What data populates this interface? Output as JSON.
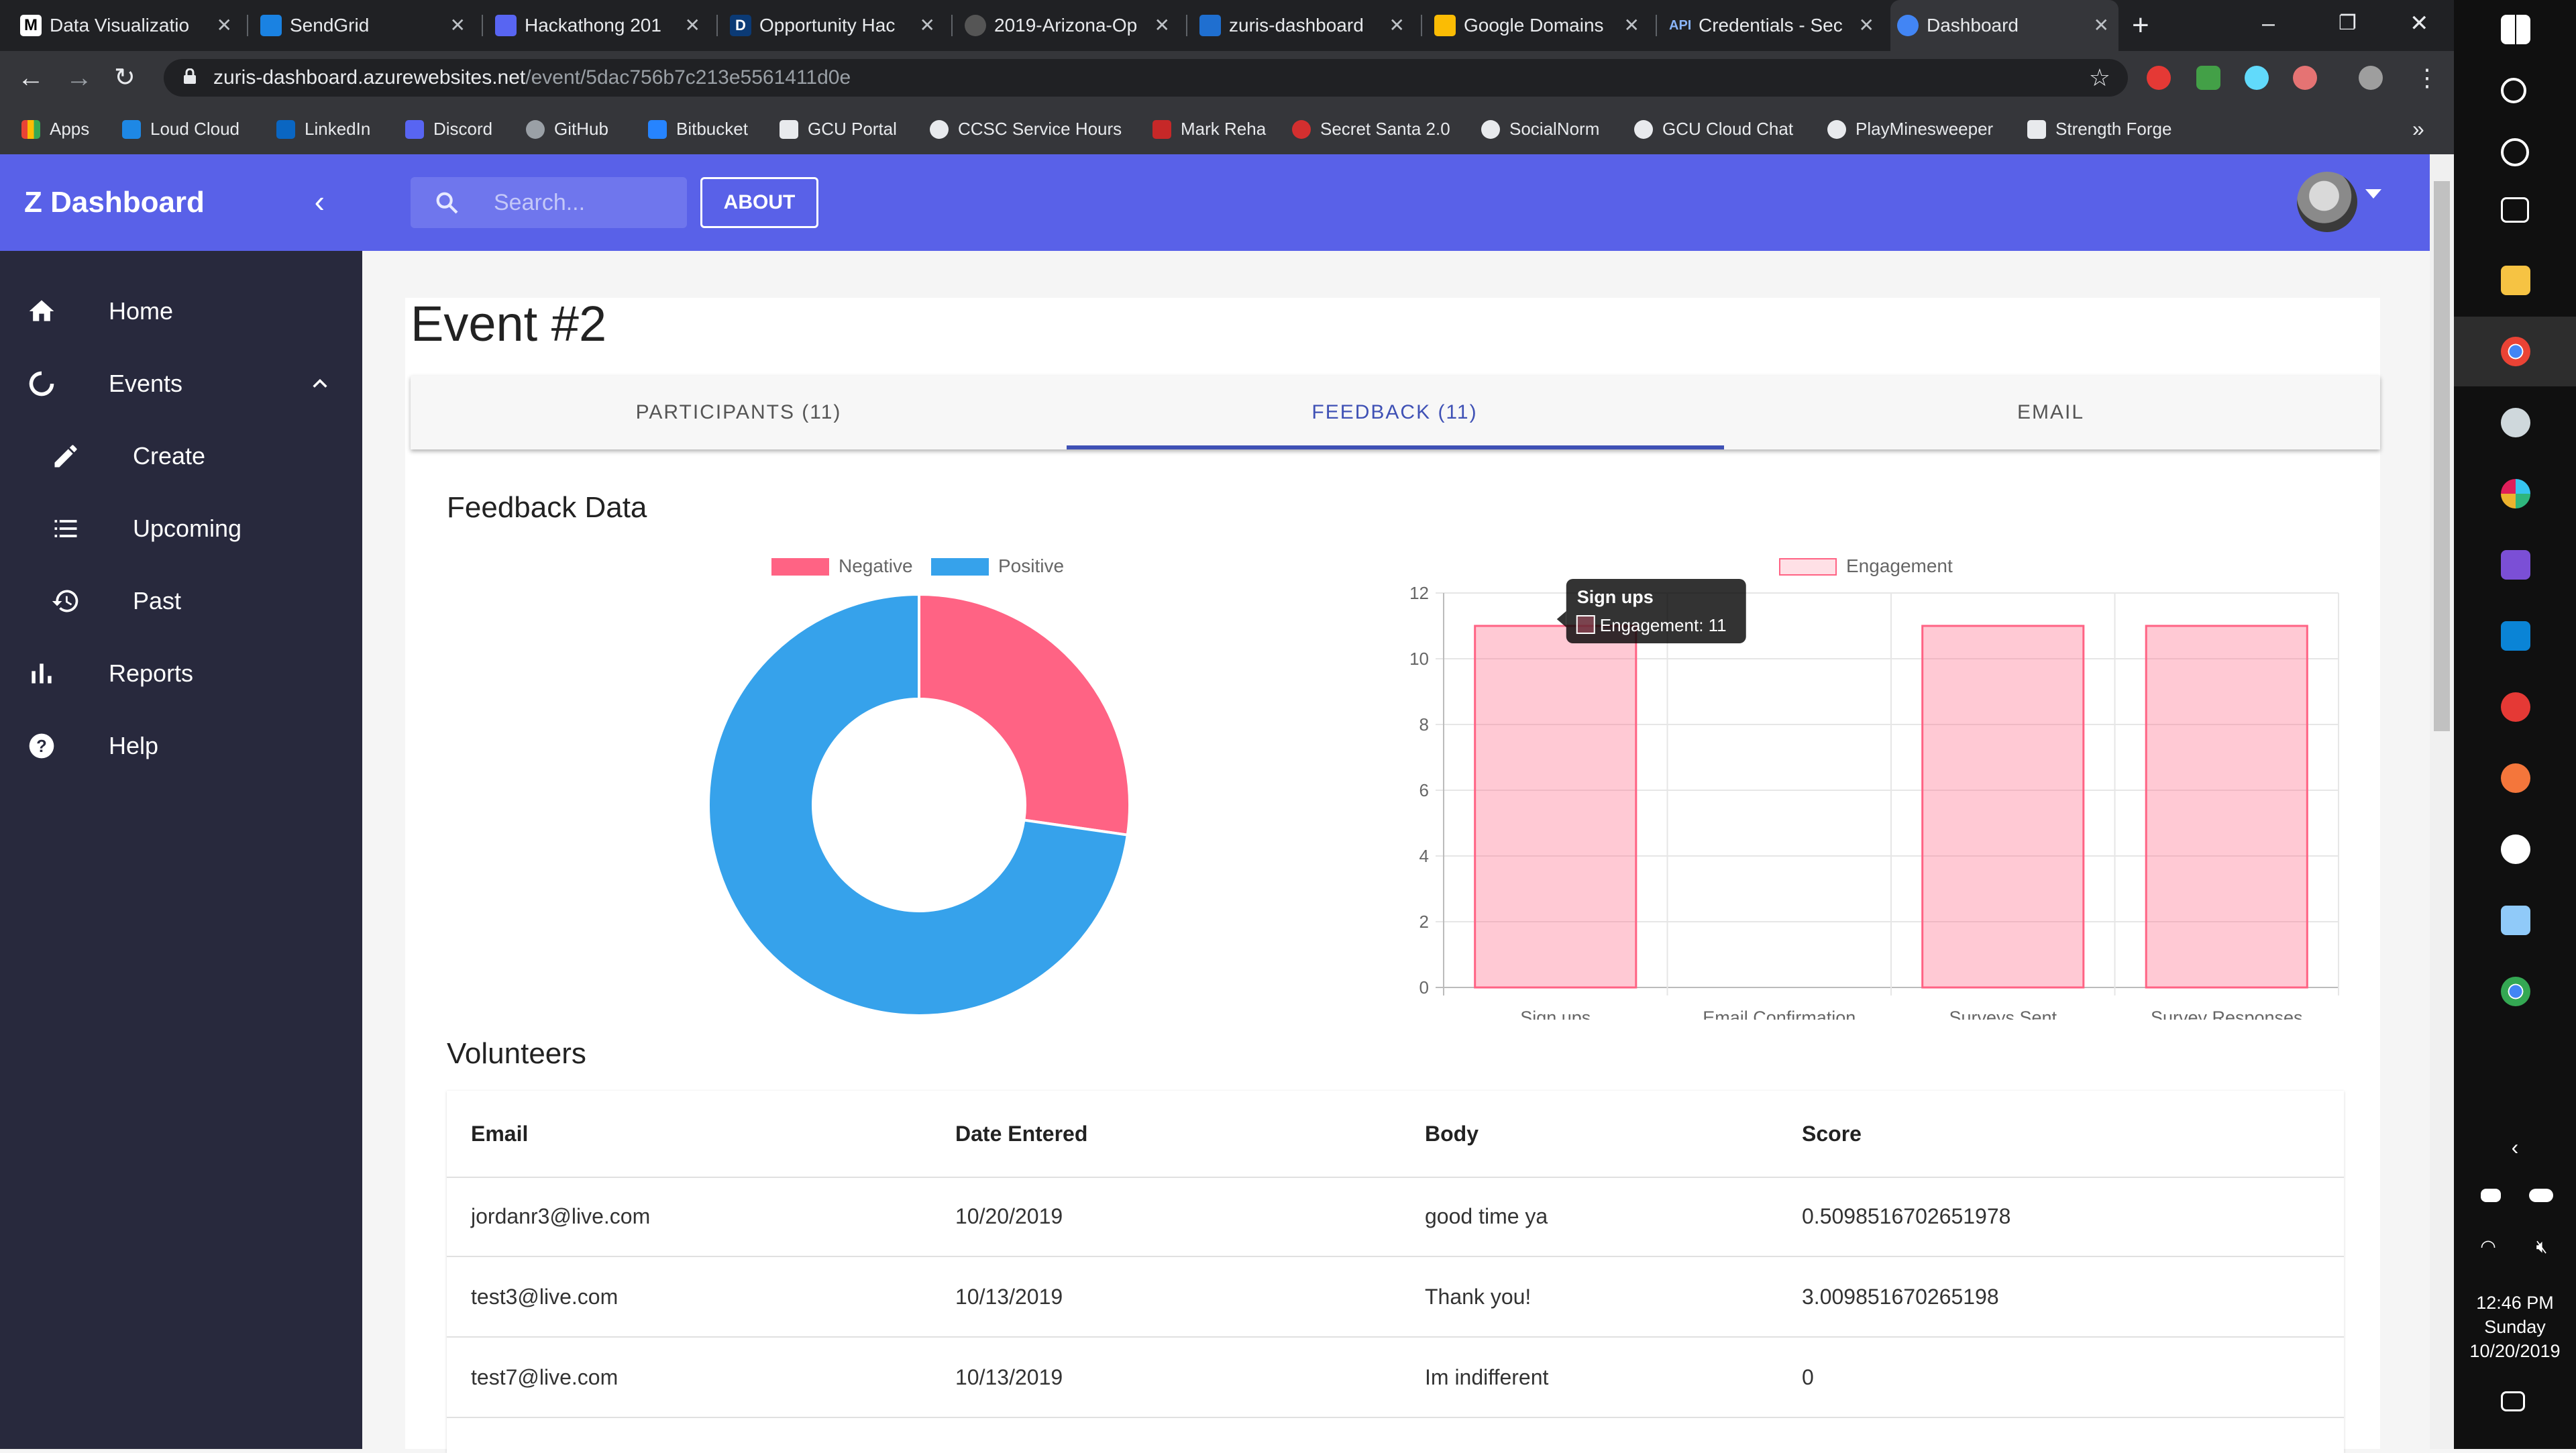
{
  "browser": {
    "tabs": [
      {
        "label": "Data Visualizatio",
        "color": "#000000",
        "glyph": "M"
      },
      {
        "label": "SendGrid",
        "color": "#1a82e2",
        "glyph": ""
      },
      {
        "label": "Hackathong 201",
        "color": "#5865f2",
        "glyph": ""
      },
      {
        "label": "Opportunity Hac",
        "color": "#0b3a75",
        "glyph": "D"
      },
      {
        "label": "2019-Arizona-Op",
        "color": "#555555",
        "glyph": ""
      },
      {
        "label": "zuris-dashboard",
        "color": "#1f6fd0",
        "glyph": ""
      },
      {
        "label": "Google Domains",
        "color": "#fbbc04",
        "glyph": ""
      },
      {
        "label": "Credentials - Sec",
        "color": "#4285f4",
        "glyph": "API"
      },
      {
        "label": "Dashboard",
        "color": "#4285f4",
        "glyph": ""
      }
    ],
    "url_host": "zuris-dashboard.azurewebsites.net",
    "url_path": "/event/5dac756b7c213e5561411d0e",
    "bookmarks": [
      {
        "label": "Apps",
        "color": "#ea4335"
      },
      {
        "label": "Loud Cloud",
        "color": "#1e88e5"
      },
      {
        "label": "LinkedIn",
        "color": "#0a66c2"
      },
      {
        "label": "Discord",
        "color": "#5865f2"
      },
      {
        "label": "GitHub",
        "color": "#9aa0a6"
      },
      {
        "label": "Bitbucket",
        "color": "#2684ff"
      },
      {
        "label": "GCU Portal",
        "color": "#e8eaed"
      },
      {
        "label": "CCSC Service Hours",
        "color": "#e8eaed"
      },
      {
        "label": "Mark Reha",
        "color": "#c62828"
      },
      {
        "label": "Secret Santa 2.0",
        "color": "#d32f2f"
      },
      {
        "label": "SocialNorm",
        "color": "#e8eaed"
      },
      {
        "label": "GCU Cloud Chat",
        "color": "#e8eaed"
      },
      {
        "label": "PlayMinesweeper",
        "color": "#e8eaed"
      },
      {
        "label": "Strength Forge",
        "color": "#e8eaed"
      }
    ],
    "overflow": "»"
  },
  "app": {
    "brand": "Z Dashboard",
    "nav": [
      {
        "label": "Home",
        "icon": "home-icon"
      },
      {
        "label": "Events",
        "icon": "events-icon"
      },
      {
        "label": "Create",
        "icon": "pencil-icon"
      },
      {
        "label": "Upcoming",
        "icon": "list-icon"
      },
      {
        "label": "Past",
        "icon": "history-icon"
      },
      {
        "label": "Reports",
        "icon": "bar-chart-icon"
      },
      {
        "label": "Help",
        "icon": "help-icon"
      }
    ],
    "search_placeholder": "Search...",
    "about_label": "ABOUT",
    "page_title": "Event #2",
    "tabs": [
      {
        "label": "PARTICIPANTS (11)",
        "active": false
      },
      {
        "label": "FEEDBACK (11)",
        "active": true
      },
      {
        "label": "EMAIL",
        "active": false
      }
    ],
    "feedback_title": "Feedback Data",
    "volunteers_title": "Volunteers",
    "accent": "#5961e8"
  },
  "chart_data": [
    {
      "type": "pie",
      "categories": [
        "Negative",
        "Positive"
      ],
      "values": [
        3,
        8
      ],
      "colors": [
        "#ff6384",
        "#36a2eb"
      ],
      "legend": "top"
    },
    {
      "type": "bar",
      "categories": [
        "Sign ups",
        "Email Confirmation",
        "Surveys Sent",
        "Survey Responses"
      ],
      "series": [
        {
          "name": "Engagement",
          "values": [
            11,
            0,
            11,
            11
          ]
        }
      ],
      "ylim": [
        0,
        12
      ],
      "yticks": [
        0,
        2,
        4,
        6,
        8,
        10,
        12
      ],
      "grid": true,
      "legend": "top",
      "color": "#ff6384",
      "tooltip": {
        "title": "Sign ups",
        "text": "Engagement: 11"
      }
    }
  ],
  "table": {
    "headers": [
      "Email",
      "Date Entered",
      "Body",
      "Score"
    ],
    "rows": [
      [
        "jordanr3@live.com",
        "10/20/2019",
        "good time ya",
        "0.5098516702651978"
      ],
      [
        "test3@live.com",
        "10/13/2019",
        "Thank you!",
        "3.009851670265198"
      ],
      [
        "test7@live.com",
        "10/13/2019",
        "Im indifferent",
        "0"
      ]
    ]
  },
  "taskbar": {
    "time": "12:46 PM",
    "day": "Sunday",
    "date": "10/20/2019"
  }
}
